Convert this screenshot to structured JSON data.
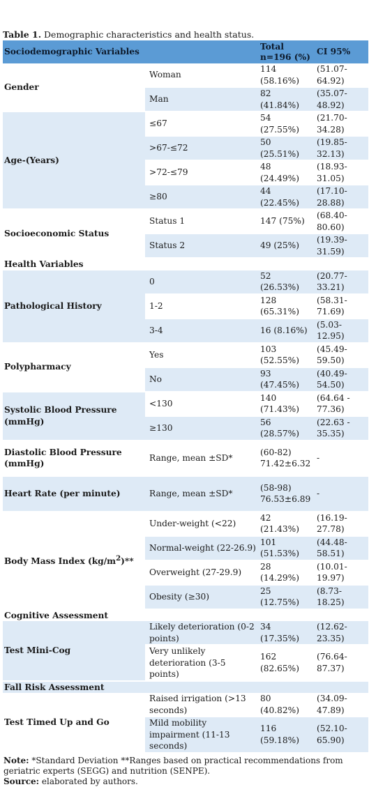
{
  "caption": {
    "label": "Table 1.",
    "text": " Demographic characteristics and health status."
  },
  "header": {
    "col1": "Sociodemographic Variables",
    "col2": "",
    "col3": "Total n=196 (%)",
    "col4": "CI 95%"
  },
  "gender": {
    "label": "Gender",
    "rows": [
      {
        "sub": "Woman",
        "total": "114 (58.16%)",
        "ci": "(51.07-64.92)"
      },
      {
        "sub": "Man",
        "total": "82 (41.84%)",
        "ci": "(35.07-48.92)"
      }
    ]
  },
  "age": {
    "label": "Age-(Years)",
    "rows": [
      {
        "sub": "≤67",
        "total": "54 (27.55%)",
        "ci": "(21.70-34.28)"
      },
      {
        "sub": ">67-≤72",
        "total": "50 (25.51%)",
        "ci": "(19.85-32.13)"
      },
      {
        "sub": ">72-≤79",
        "total": "48 (24.49%)",
        "ci": "(18.93-31.05)"
      },
      {
        "sub": "≥80",
        "total": "44 (22.45%)",
        "ci": "(17.10-28.88)"
      }
    ]
  },
  "ses": {
    "label": "Socioeconomic Status",
    "rows": [
      {
        "sub": "Status 1",
        "total": "147 (75%)",
        "ci": "(68.40-80.60)"
      },
      {
        "sub": "Status 2",
        "total": "49 (25%)",
        "ci": "(19.39-31.59)"
      }
    ]
  },
  "health_section": "Health Variables",
  "path": {
    "label": "Pathological History",
    "rows": [
      {
        "sub": "0",
        "total": "52 (26.53%)",
        "ci": "(20.77-33.21)"
      },
      {
        "sub": "1-2",
        "total": "128 (65.31%)",
        "ci": "(58.31-71.69)"
      },
      {
        "sub": "3-4",
        "total": "16 (8.16%)",
        "ci": "(5.03-12.95)"
      }
    ]
  },
  "poly": {
    "label": "Polypharmacy",
    "rows": [
      {
        "sub": "Yes",
        "total": "103 (52.55%)",
        "ci": "(45.49-59.50)"
      },
      {
        "sub": "No",
        "total": "93 (47.45%)",
        "ci": "(40.49-54.50)"
      }
    ]
  },
  "sbp": {
    "label": "Systolic Blood Pressure (mmHg)",
    "rows": [
      {
        "sub": "<130",
        "total": "140 (71.43%)",
        "ci": "(64.64 - 77.36)"
      },
      {
        "sub": "≥130",
        "total": "56 (28.57%)",
        "ci": "(22.63 - 35.35)"
      }
    ]
  },
  "dbp": {
    "label": "Diastolic Blood Pressure (mmHg)",
    "sub": "Range, mean ±SD*",
    "total": "(60-82) 71.42±6.32",
    "ci": "-"
  },
  "hr": {
    "label": "Heart Rate (per minute)",
    "sub": "Range, mean ±SD*",
    "total": "(58-98) 76.53±6.89",
    "ci": "-"
  },
  "bmi": {
    "label_pre": "Body Mass Index (kg/m",
    "label_sup": "2",
    "label_post": ")**",
    "rows": [
      {
        "sub": "Under-weight (<22)",
        "total": "42 (21.43%)",
        "ci": "(16.19-27.78)"
      },
      {
        "sub": "Normal-weight (22-26.9)",
        "total": "101 (51.53%)",
        "ci": "(44.48-58.51)"
      },
      {
        "sub": "Overweight (27-29.9)",
        "total": "28 (14.29%)",
        "ci": "(10.01-19.97)"
      },
      {
        "sub": "Obesity (≥30)",
        "total": "25 (12.75%)",
        "ci": "(8.73-18.25)"
      }
    ]
  },
  "cog_section": "Cognitive Assessment",
  "minicog": {
    "label": "Test Mini-Cog",
    "rows": [
      {
        "sub": "Likely deterioration (0-2 points)",
        "total": "34 (17.35%)",
        "ci": "(12.62-23.35)"
      },
      {
        "sub": "Very unlikely deterioration (3-5 points)",
        "total": "162 (82.65%)",
        "ci": "(76.64-87.37)"
      }
    ]
  },
  "fall_section": "Fall Risk Assessment",
  "tug": {
    "label": "Test Timed Up and Go",
    "rows": [
      {
        "sub": "Raised irrigation (>13 seconds)",
        "total": "80 (40.82%)",
        "ci": "(34.09-47.89)"
      },
      {
        "sub": "Mild mobility impairment (11-13 seconds)",
        "total": "116 (59.18%)",
        "ci": "(52.10-65.90)"
      }
    ]
  },
  "note": {
    "label": "Note:",
    "text": " *Standard Deviation **Ranges based on practical recommendations from geriatric experts (SEGG) and nutrition (SENPE).",
    "source_label": "Source:",
    "source_text": " elaborated by authors."
  },
  "colors": {
    "header": "#5b9bd5",
    "shade": "#deeaf6"
  }
}
